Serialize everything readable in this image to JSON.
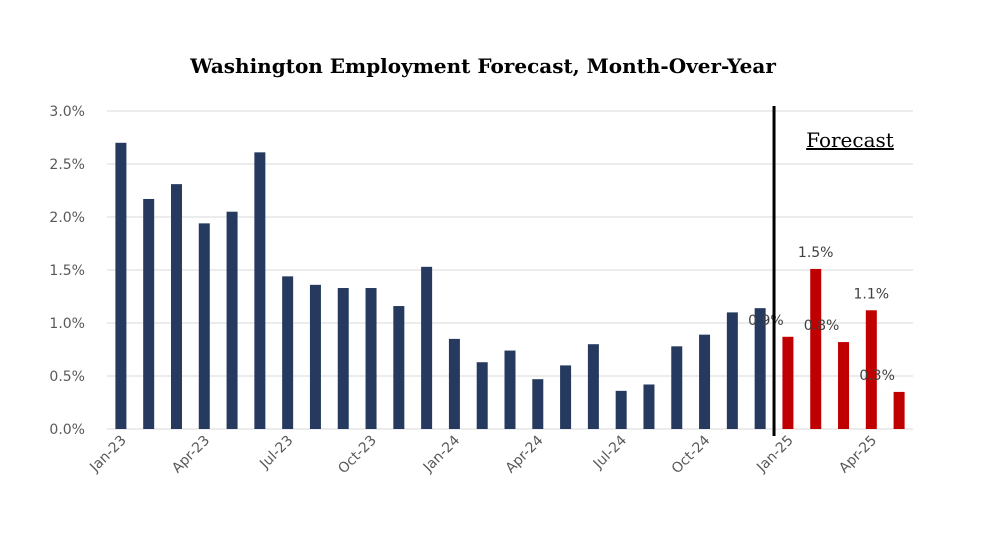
{
  "chart_data": {
    "type": "bar",
    "title": "Washington Employment Forecast, Month-Over-Year",
    "xlabel": "",
    "ylabel": "",
    "ylim": [
      0,
      0.03
    ],
    "yticks": [
      "0.0%",
      "0.5%",
      "1.0%",
      "1.5%",
      "2.0%",
      "2.5%",
      "3.0%"
    ],
    "grid": true,
    "legend": "none",
    "categories": [
      "Jan-23",
      "Feb-23",
      "Mar-23",
      "Apr-23",
      "May-23",
      "Jun-23",
      "Jul-23",
      "Aug-23",
      "Sep-23",
      "Oct-23",
      "Nov-23",
      "Dec-23",
      "Jan-24",
      "Feb-24",
      "Mar-24",
      "Apr-24",
      "May-24",
      "Jun-24",
      "Jul-24",
      "Aug-24",
      "Sep-24",
      "Oct-24",
      "Nov-24",
      "Dec-24",
      "Jan-25",
      "Feb-25",
      "Mar-25",
      "Apr-25",
      "May-25"
    ],
    "xtick_labels": [
      "Jan-23",
      "Apr-23",
      "Jul-23",
      "Oct-23",
      "Jan-24",
      "Apr-24",
      "Jul-24",
      "Oct-24",
      "Jan-25",
      "Apr-25"
    ],
    "values": [
      0.027,
      0.0217,
      0.0231,
      0.0194,
      0.0205,
      0.0261,
      0.0144,
      0.0136,
      0.0133,
      0.0133,
      0.0116,
      0.0153,
      0.0085,
      0.0063,
      0.0074,
      0.0047,
      0.006,
      0.008,
      0.0036,
      0.0042,
      0.0078,
      0.0089,
      0.011,
      0.0114,
      0.0087,
      0.0151,
      0.0082,
      0.0112,
      0.0035
    ],
    "forecast_start_index": 24,
    "forecast_label": "Forecast",
    "forecast_data_labels": [
      "0.9%",
      "1.5%",
      "0.8%",
      "1.1%",
      "0.3%"
    ],
    "colors": {
      "actual": "#253a5e",
      "forecast": "#c00000",
      "divider": "#000000"
    }
  }
}
